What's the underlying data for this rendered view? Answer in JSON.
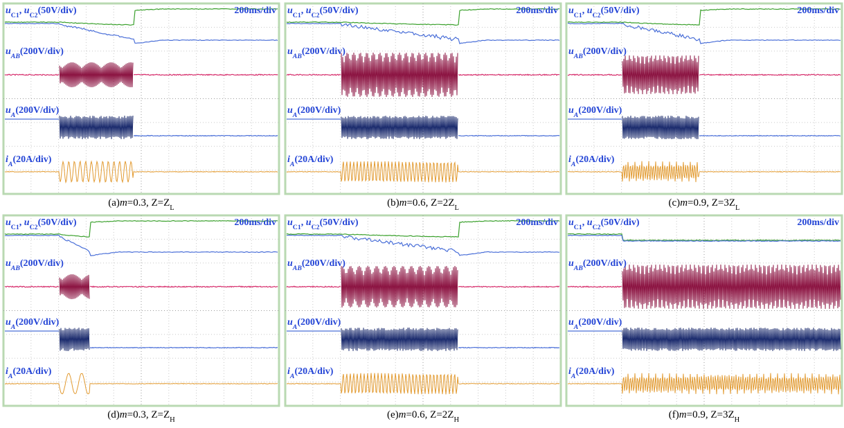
{
  "channels": {
    "uc": [
      "u",
      "C1",
      ", ",
      "u",
      "C2",
      "(50V/div)"
    ],
    "time": "200ms/div",
    "uab": [
      "u",
      "AB",
      "(200V/div)"
    ],
    "ua": [
      "u",
      "A",
      "(200V/div)"
    ],
    "ia": [
      "i",
      "A",
      "(20A/div)"
    ]
  },
  "panels": [
    {
      "caption": [
        "(a)",
        "m",
        "=0.3, Z=Z",
        "L"
      ]
    },
    {
      "caption": [
        "(b)",
        "m",
        "=0.6, Z=2Z",
        "L"
      ]
    },
    {
      "caption": [
        "(c)",
        "m",
        "=0.9, Z=3Z",
        "L"
      ]
    },
    {
      "caption": [
        "(d)",
        "m",
        "=0.3, Z=Z",
        "H"
      ]
    },
    {
      "caption": [
        "(e)",
        "m",
        "=0.6, Z=2Z",
        "H"
      ]
    },
    {
      "caption": [
        "(f)",
        "m",
        "=0.9, Z=3Z",
        "H"
      ]
    }
  ]
}
